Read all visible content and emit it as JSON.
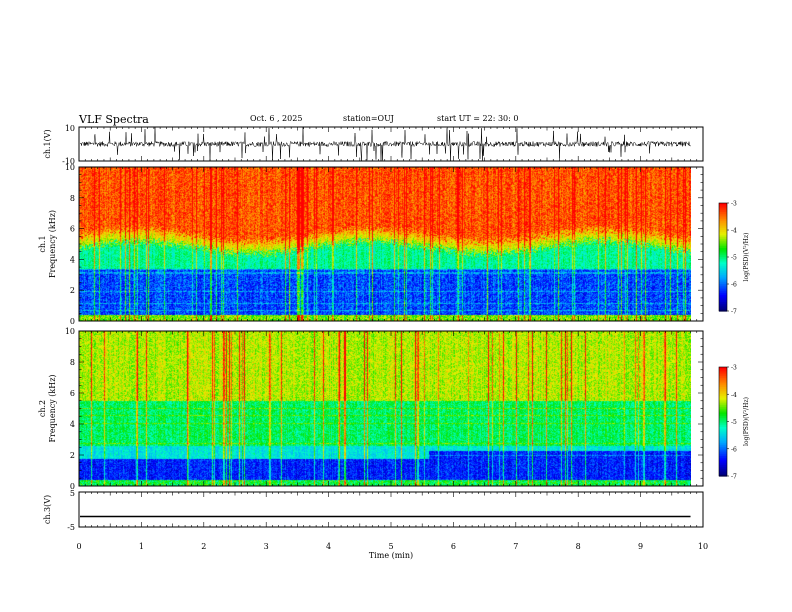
{
  "header": {
    "title": "VLF Spectra",
    "date": "Oct. 6 , 2025",
    "station": "station=OUJ",
    "start": "start UT = 22: 30: 0"
  },
  "chart_data": [
    {
      "type": "line",
      "name": "ch1-waveform",
      "ylabel": "ch.1(V)",
      "ylim": [
        -10,
        10
      ],
      "y_ticks": [
        "10",
        "-10"
      ],
      "baseline": 0,
      "xlim": [
        0,
        10
      ],
      "data_end_min": 9.8
    },
    {
      "type": "heatmap",
      "name": "ch1-spectrogram",
      "ylabel_line1": "ch.1",
      "ylabel_line2": "Frequency (kHz)",
      "ylim": [
        0,
        10
      ],
      "y_ticks": [
        "0",
        "2",
        "4",
        "6",
        "8",
        "10"
      ],
      "xlim": [
        0,
        10
      ],
      "data_end_min": 9.8,
      "background_level_boundary_kHz": [
        {
          "t": 0,
          "f": 5.2
        },
        {
          "t": 2,
          "f": 5.0
        },
        {
          "t": 4,
          "f": 4.8
        },
        {
          "t": 5.6,
          "f": 5.0
        },
        {
          "t": 7,
          "f": 4.8
        },
        {
          "t": 9.8,
          "f": 4.8
        }
      ],
      "colorbar": {
        "label": "log(PSD)(V²/Hz)",
        "range": [
          -7,
          -3
        ],
        "ticks": [
          "-3",
          "-4",
          "-5",
          "-6",
          "-7"
        ]
      }
    },
    {
      "type": "heatmap",
      "name": "ch2-spectrogram",
      "ylabel_line1": "ch.2",
      "ylabel_line2": "Frequency (kHz)",
      "ylim": [
        0,
        10
      ],
      "y_ticks": [
        "0",
        "2",
        "4",
        "6",
        "8",
        "10"
      ],
      "xlim": [
        0,
        10
      ],
      "data_end_min": 9.8,
      "step_change_at_min": 5.6,
      "colorbar": {
        "label": "log(PSD)(V²/Hz)",
        "range": [
          -7,
          -3
        ],
        "ticks": [
          "-3",
          "-4",
          "-5",
          "-6",
          "-7"
        ]
      }
    },
    {
      "type": "line",
      "name": "ch3-waveform",
      "ylabel": "ch.3(V)",
      "ylim": [
        -5,
        5
      ],
      "y_ticks": [
        "5",
        "-5"
      ],
      "constant_value": -2,
      "xlim": [
        0,
        10
      ],
      "data_end_min": 9.8
    }
  ],
  "x_axis": {
    "label": "Time (min)",
    "ticks": [
      "0",
      "1",
      "2",
      "3",
      "4",
      "5",
      "6",
      "7",
      "8",
      "9",
      "10"
    ]
  }
}
